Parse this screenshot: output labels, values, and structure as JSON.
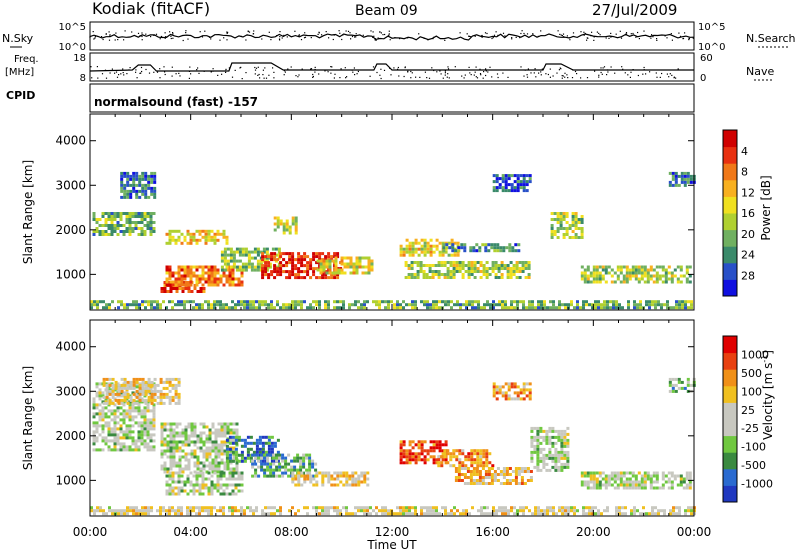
{
  "header": {
    "station": "Kodiak (fitACF)",
    "beam": "Beam 09",
    "date": "27/Jul/2009"
  },
  "top_panels": {
    "nsky_label": "N.Sky",
    "nsky_ticks": [
      "10^5",
      "10^0"
    ],
    "nsearch_label": "N.Search",
    "nsearch_ticks": [
      "10^5",
      "10^0"
    ],
    "freq_label": "Freq.",
    "freq_unit": "[MHz]",
    "freq_ticks": [
      "18",
      "8"
    ],
    "nave_label": "Nave",
    "nave_ticks": [
      "60",
      "0"
    ],
    "cpid_label": "CPID",
    "cpid_value": "normalsound (fast) -157"
  },
  "chart_data": [
    {
      "type": "heatmap",
      "name": "power",
      "xlabel": "",
      "ylabel": "Slant Range [km]",
      "xlim": [
        0,
        24
      ],
      "ylim": [
        200,
        4600
      ],
      "xticks": [
        "00:00",
        "04:00",
        "08:00",
        "12:00",
        "16:00",
        "20:00",
        "00:00"
      ],
      "yticks": [
        1000,
        2000,
        3000,
        4000
      ],
      "colorbar": {
        "label": "Power [dB]",
        "ticks": [
          "4",
          "8",
          "12",
          "16",
          "20",
          "24",
          "28"
        ],
        "colors": [
          "#1010e0",
          "#2850c8",
          "#3a8a6a",
          "#70b060",
          "#b0d030",
          "#f0e020",
          "#f8b020",
          "#f07818",
          "#e83010",
          "#d00000"
        ]
      },
      "regions": [
        {
          "t0": 0.0,
          "t1": 24.0,
          "r0": 220,
          "r1": 420,
          "level": 0.35
        },
        {
          "t0": 0.1,
          "t1": 2.5,
          "r0": 1900,
          "r1": 2400,
          "level": 0.35
        },
        {
          "t0": 1.2,
          "t1": 2.6,
          "r0": 2700,
          "r1": 3300,
          "level": 0.2
        },
        {
          "t0": 2.8,
          "t1": 4.5,
          "r0": 600,
          "r1": 850,
          "level": 0.85
        },
        {
          "t0": 3.0,
          "t1": 6.0,
          "r0": 750,
          "r1": 1200,
          "level": 0.75
        },
        {
          "t0": 3.0,
          "t1": 5.5,
          "r0": 1700,
          "r1": 2000,
          "level": 0.6
        },
        {
          "t0": 5.2,
          "t1": 7.5,
          "r0": 1100,
          "r1": 1600,
          "level": 0.4
        },
        {
          "t0": 6.8,
          "t1": 9.9,
          "r0": 900,
          "r1": 1500,
          "level": 0.9
        },
        {
          "t0": 9.0,
          "t1": 11.2,
          "r0": 1000,
          "r1": 1400,
          "level": 0.55
        },
        {
          "t0": 7.3,
          "t1": 8.2,
          "r0": 1900,
          "r1": 2300,
          "level": 0.5
        },
        {
          "t0": 12.3,
          "t1": 14.6,
          "r0": 1400,
          "r1": 1800,
          "level": 0.55
        },
        {
          "t0": 12.5,
          "t1": 17.5,
          "r0": 900,
          "r1": 1300,
          "level": 0.45
        },
        {
          "t0": 14.0,
          "t1": 17.0,
          "r0": 1500,
          "r1": 1700,
          "level": 0.25
        },
        {
          "t0": 16.0,
          "t1": 17.5,
          "r0": 2900,
          "r1": 3250,
          "level": 0.15
        },
        {
          "t0": 18.3,
          "t1": 19.6,
          "r0": 1800,
          "r1": 2400,
          "level": 0.45
        },
        {
          "t0": 19.5,
          "t1": 23.8,
          "r0": 800,
          "r1": 1200,
          "level": 0.45
        },
        {
          "t0": 23.0,
          "t1": 24.0,
          "r0": 3000,
          "r1": 3300,
          "level": 0.2
        }
      ]
    },
    {
      "type": "heatmap",
      "name": "velocity",
      "xlabel": "Time UT",
      "ylabel": "Slant Range [km]",
      "xlim": [
        0,
        24
      ],
      "ylim": [
        200,
        4600
      ],
      "xticks": [
        "00:00",
        "04:00",
        "08:00",
        "12:00",
        "16:00",
        "20:00",
        "00:00"
      ],
      "yticks": [
        1000,
        2000,
        3000,
        4000
      ],
      "colorbar": {
        "label": "Velocity [m s",
        "label_sup": "-1",
        "label_end": "]",
        "ticks": [
          "1000",
          "500",
          "100",
          "25",
          "-25",
          "-100",
          "-500",
          "-1000"
        ],
        "colors": [
          "#2038c0",
          "#2a6ad0",
          "#3a8a40",
          "#70c840",
          "#c8c8c0",
          "#c8c8c0",
          "#f0c020",
          "#f09018",
          "#e84010",
          "#e00000"
        ]
      },
      "regions": [
        {
          "t0": 0.0,
          "t1": 24.0,
          "r0": 220,
          "r1": 420,
          "level": 0.55
        },
        {
          "t0": 0.1,
          "t1": 2.6,
          "r0": 1700,
          "r1": 3200,
          "level": 0.45
        },
        {
          "t0": 2.8,
          "t1": 5.8,
          "r0": 1200,
          "r1": 2300,
          "level": 0.45
        },
        {
          "t0": 3.0,
          "t1": 6.0,
          "r0": 700,
          "r1": 1200,
          "level": 0.45
        },
        {
          "t0": 5.4,
          "t1": 7.5,
          "r0": 1400,
          "r1": 2000,
          "level": 0.18
        },
        {
          "t0": 6.4,
          "t1": 9.0,
          "r0": 1100,
          "r1": 1600,
          "level": 0.28
        },
        {
          "t0": 8.0,
          "t1": 11.0,
          "r0": 900,
          "r1": 1200,
          "level": 0.6
        },
        {
          "t0": 12.3,
          "t1": 14.2,
          "r0": 1400,
          "r1": 1900,
          "level": 0.85
        },
        {
          "t0": 13.8,
          "t1": 16.0,
          "r0": 1300,
          "r1": 1700,
          "level": 0.75
        },
        {
          "t0": 14.5,
          "t1": 17.5,
          "r0": 900,
          "r1": 1300,
          "level": 0.68
        },
        {
          "t0": 17.5,
          "t1": 19.0,
          "r0": 1200,
          "r1": 2200,
          "level": 0.45
        },
        {
          "t0": 19.5,
          "t1": 23.8,
          "r0": 800,
          "r1": 1200,
          "level": 0.47
        },
        {
          "t0": 16.0,
          "t1": 17.5,
          "r0": 2800,
          "r1": 3200,
          "level": 0.7
        },
        {
          "t0": 0.5,
          "t1": 3.5,
          "r0": 2700,
          "r1": 3300,
          "level": 0.62
        },
        {
          "t0": 23.0,
          "t1": 24.0,
          "r0": 3000,
          "r1": 3300,
          "level": 0.3
        }
      ]
    }
  ]
}
